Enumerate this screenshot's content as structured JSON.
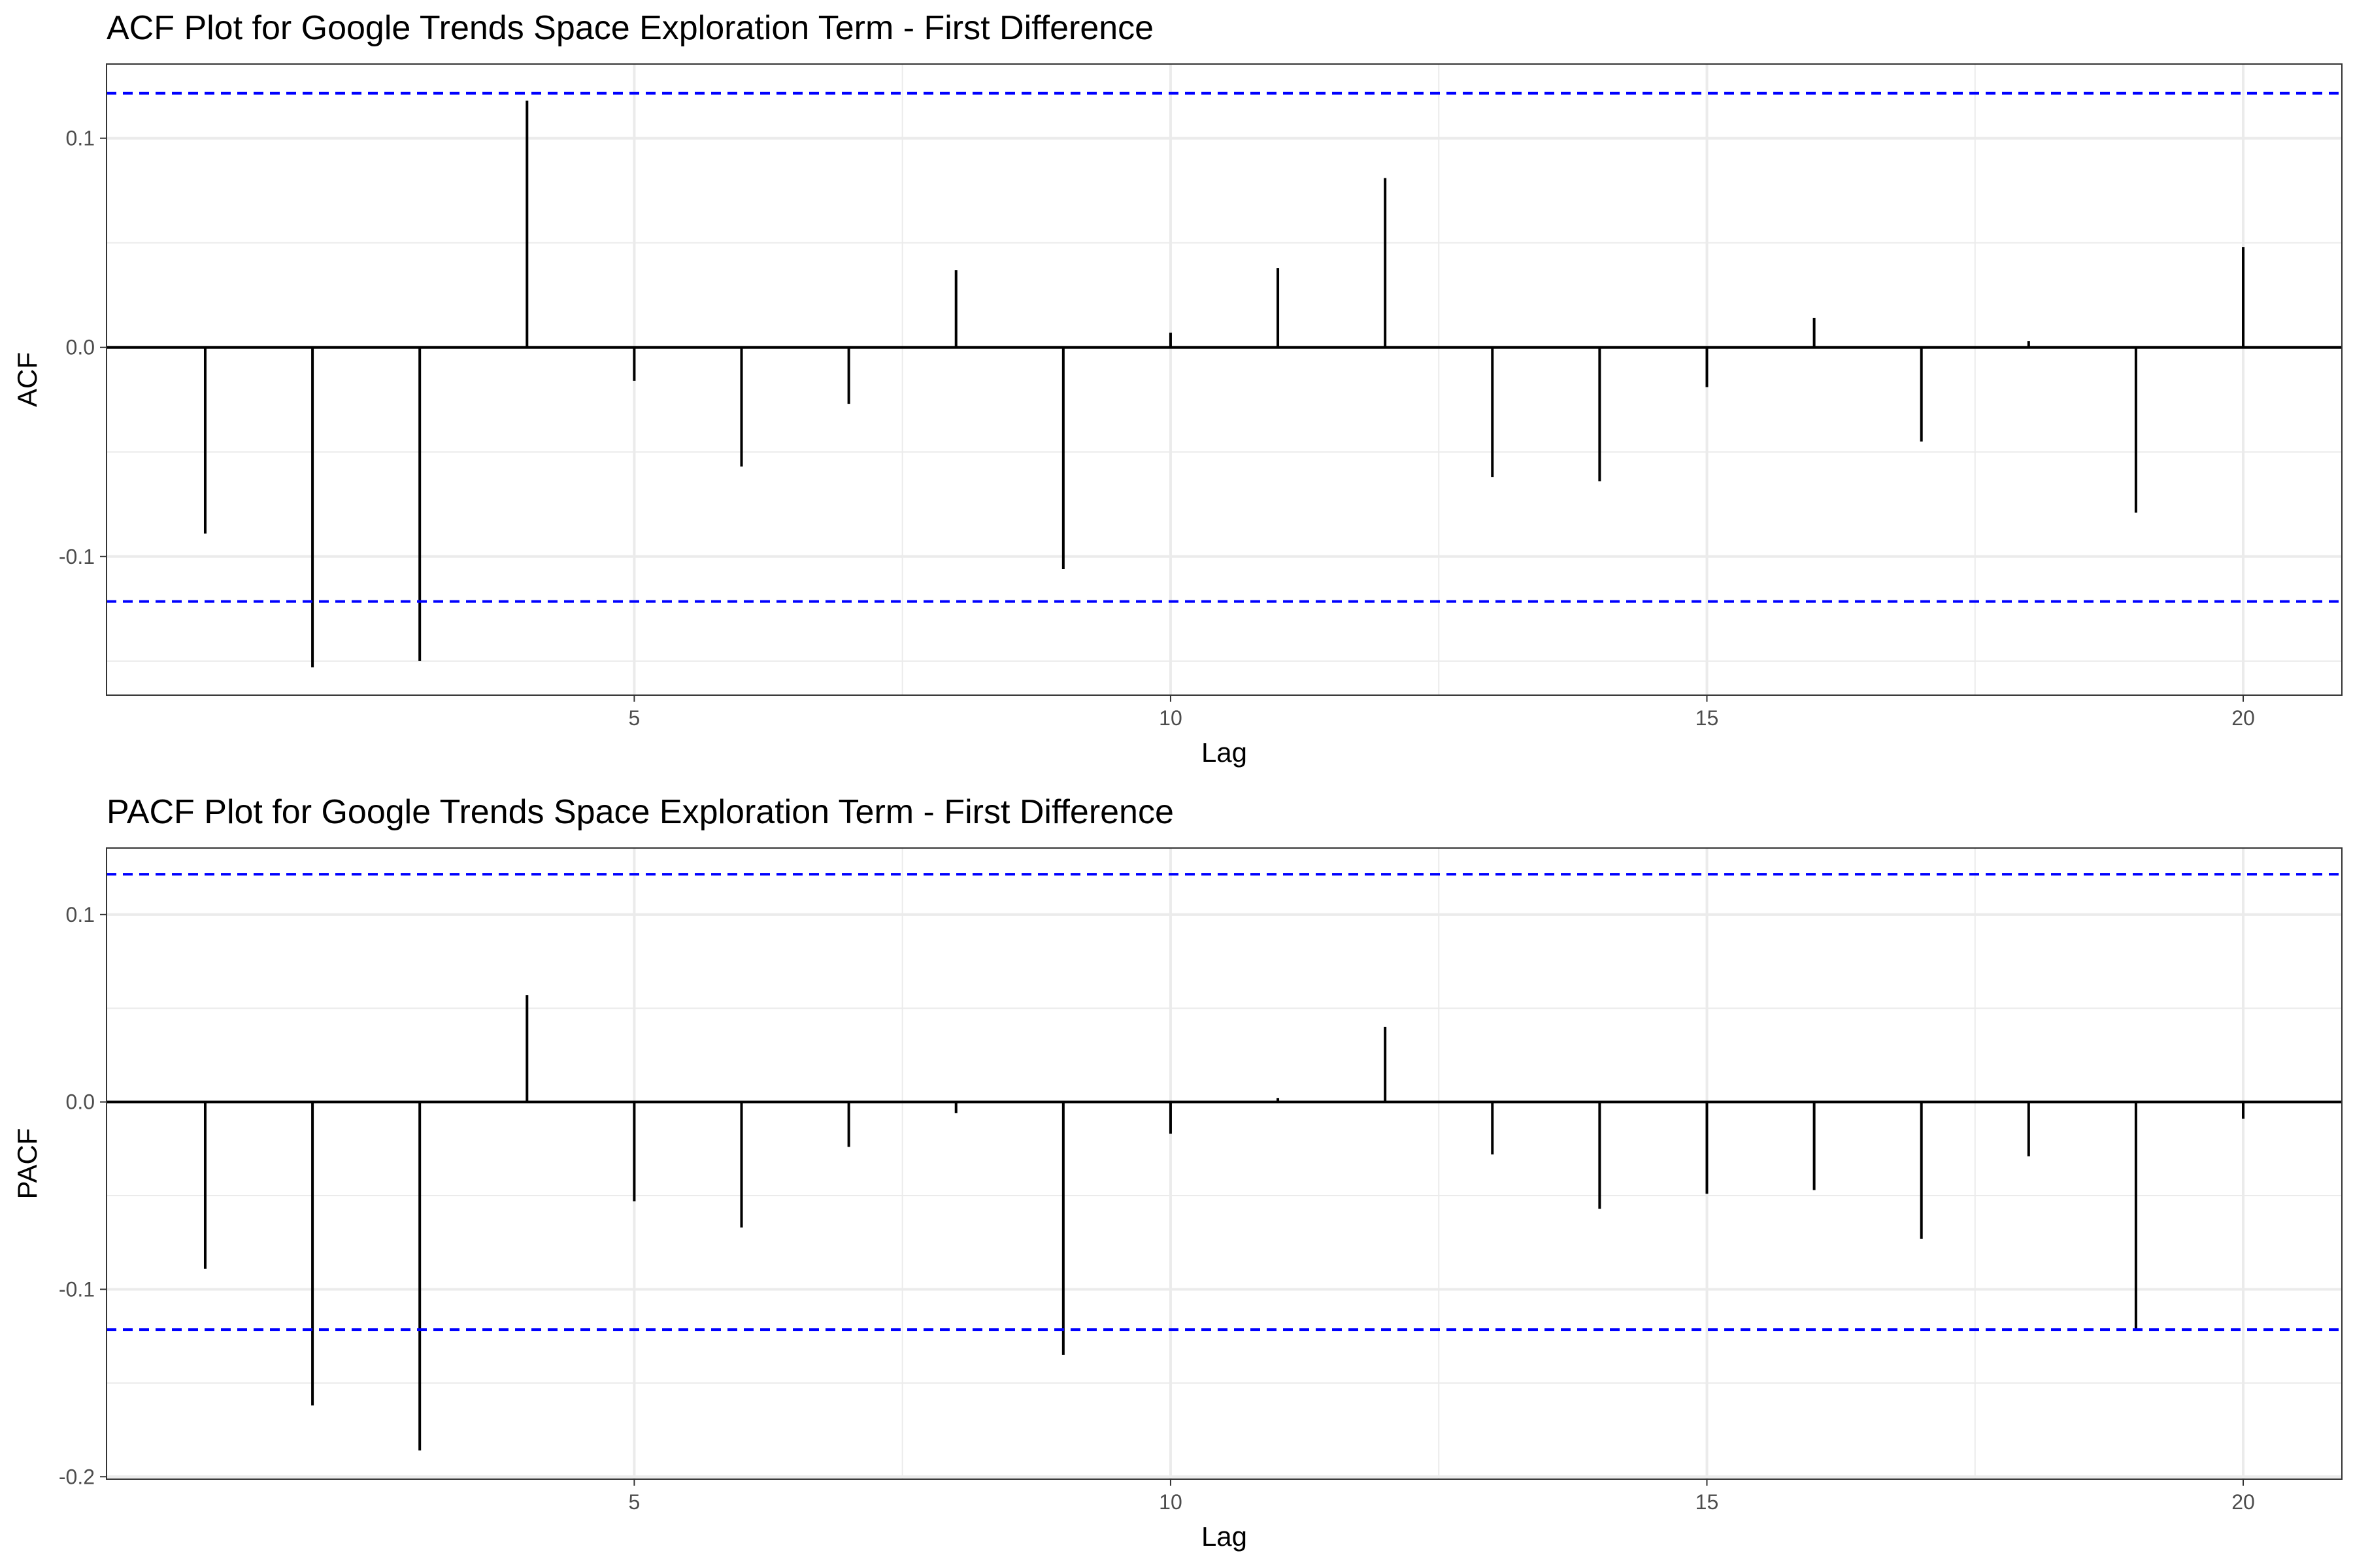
{
  "chart_data": [
    {
      "type": "bar",
      "title": "ACF Plot for Google Trends Space Exploration Term - First Difference",
      "xlabel": "Lag",
      "ylabel": "ACF",
      "x": [
        1,
        2,
        3,
        4,
        5,
        6,
        7,
        8,
        9,
        10,
        11,
        12,
        13,
        14,
        15,
        16,
        17,
        18,
        19,
        20
      ],
      "values": [
        -0.089,
        -0.153,
        -0.15,
        0.118,
        -0.016,
        -0.057,
        -0.027,
        0.037,
        -0.106,
        0.007,
        0.038,
        0.081,
        -0.062,
        -0.064,
        -0.019,
        0.014,
        -0.045,
        0.003,
        -0.079,
        0.048
      ],
      "confidence_bound": 0.1215,
      "xlim": [
        0.08,
        20.92
      ],
      "ylim": [
        -0.1663,
        0.1355
      ],
      "xticks": [
        5,
        10,
        15,
        20
      ],
      "xtick_labels": [
        "5",
        "10",
        "15",
        "20"
      ],
      "yticks": [
        -0.1,
        0.0,
        0.1
      ],
      "ytick_labels": [
        "-0.1",
        "0.0",
        "0.1"
      ],
      "grid": true,
      "colors": {
        "stems": "#000000",
        "bounds": "#0000ff",
        "grid": "#ebebeb"
      }
    },
    {
      "type": "bar",
      "title": "PACF Plot for Google Trends Space Exploration Term - First Difference",
      "xlabel": "Lag",
      "ylabel": "PACF",
      "x": [
        1,
        2,
        3,
        4,
        5,
        6,
        7,
        8,
        9,
        10,
        11,
        12,
        13,
        14,
        15,
        16,
        17,
        18,
        19,
        20
      ],
      "values": [
        -0.089,
        -0.162,
        -0.186,
        0.057,
        -0.053,
        -0.067,
        -0.024,
        -0.006,
        -0.135,
        -0.017,
        0.002,
        0.04,
        -0.028,
        -0.057,
        -0.049,
        -0.047,
        -0.073,
        -0.029,
        -0.121,
        -0.009
      ],
      "confidence_bound": 0.1215,
      "xlim": [
        0.08,
        20.92
      ],
      "ylim": [
        -0.2013,
        0.1355
      ],
      "xticks": [
        5,
        10,
        15,
        20
      ],
      "xtick_labels": [
        "5",
        "10",
        "15",
        "20"
      ],
      "yticks": [
        -0.2,
        -0.1,
        0.0,
        0.1
      ],
      "ytick_labels": [
        "-0.2",
        "-0.1",
        "0.0",
        "0.1"
      ],
      "grid": true,
      "colors": {
        "stems": "#000000",
        "bounds": "#0000ff",
        "grid": "#ebebeb"
      }
    }
  ]
}
